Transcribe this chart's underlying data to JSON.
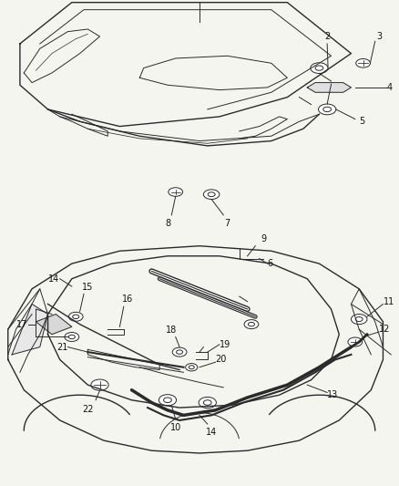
{
  "background_color": "#f5f5f0",
  "line_color": "#2a2a2a",
  "label_color": "#111111",
  "fig_width": 4.38,
  "fig_height": 5.33,
  "dpi": 100
}
